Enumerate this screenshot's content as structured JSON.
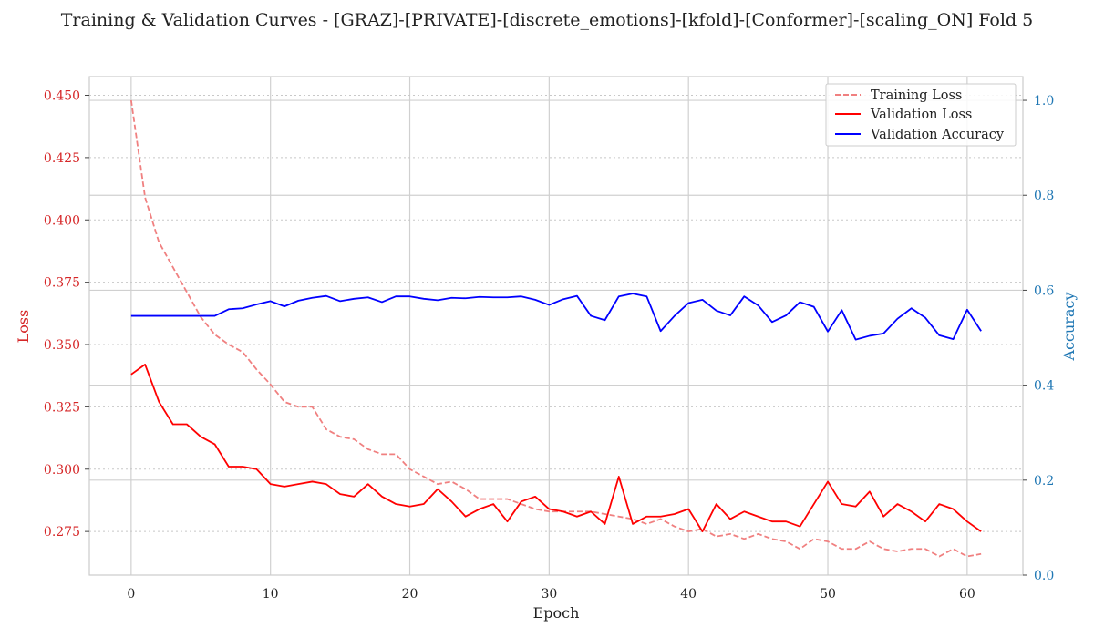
{
  "chart_data": {
    "type": "line",
    "title": "Training & Validation Curves - [GRAZ]-[PRIVATE]-[discrete_emotions]-[kfold]-[Conformer]-[scaling_ON] Fold 5",
    "xlabel": "Epoch",
    "ylabel_left": "Loss",
    "ylabel_right": "Accuracy",
    "xlim": [
      -3,
      64
    ],
    "ylim_left": [
      0.2575,
      0.4575
    ],
    "ylim_right": [
      0.0,
      1.05
    ],
    "x_ticks": [
      0,
      10,
      20,
      30,
      40,
      50,
      60
    ],
    "y_ticks_left": [
      0.275,
      0.3,
      0.325,
      0.35,
      0.375,
      0.4,
      0.425,
      0.45
    ],
    "y_ticks_right": [
      0.0,
      0.2,
      0.4,
      0.6,
      0.8,
      1.0
    ],
    "grid": true,
    "legend_position": "top-right",
    "colors": {
      "training_loss": "#f08080",
      "validation_loss": "#ff0000",
      "validation_accuracy": "#0000ff",
      "left_axis": "#d62728",
      "right_axis": "#1f77b4"
    },
    "x": [
      0,
      1,
      2,
      3,
      4,
      5,
      6,
      7,
      8,
      9,
      10,
      11,
      12,
      13,
      14,
      15,
      16,
      17,
      18,
      19,
      20,
      21,
      22,
      23,
      24,
      25,
      26,
      27,
      28,
      29,
      30,
      31,
      32,
      33,
      34,
      35,
      36,
      37,
      38,
      39,
      40,
      41,
      42,
      43,
      44,
      45,
      46,
      47,
      48,
      49,
      50,
      51,
      52,
      53,
      54,
      55,
      56,
      57,
      58,
      59,
      60,
      61
    ],
    "series": [
      {
        "name": "Training Loss",
        "axis": "left",
        "style": "dashed",
        "values": [
          0.448,
          0.409,
          0.391,
          0.381,
          0.371,
          0.361,
          0.354,
          0.35,
          0.347,
          0.34,
          0.334,
          0.327,
          0.325,
          0.325,
          0.316,
          0.313,
          0.312,
          0.308,
          0.306,
          0.306,
          0.3,
          0.297,
          0.294,
          0.295,
          0.292,
          0.288,
          0.288,
          0.288,
          0.286,
          0.284,
          0.283,
          0.283,
          0.283,
          0.283,
          0.282,
          0.281,
          0.28,
          0.278,
          0.28,
          0.277,
          0.275,
          0.276,
          0.273,
          0.274,
          0.272,
          0.274,
          0.272,
          0.271,
          0.268,
          0.272,
          0.271,
          0.268,
          0.268,
          0.271,
          0.268,
          0.267,
          0.268,
          0.268,
          0.265,
          0.268,
          0.265,
          0.266
        ]
      },
      {
        "name": "Validation Loss",
        "axis": "left",
        "style": "solid",
        "values": [
          0.338,
          0.342,
          0.327,
          0.318,
          0.318,
          0.313,
          0.31,
          0.301,
          0.301,
          0.3,
          0.294,
          0.293,
          0.294,
          0.295,
          0.294,
          0.29,
          0.289,
          0.294,
          0.289,
          0.286,
          0.285,
          0.286,
          0.292,
          0.287,
          0.281,
          0.284,
          0.286,
          0.279,
          0.287,
          0.289,
          0.284,
          0.283,
          0.281,
          0.283,
          0.278,
          0.297,
          0.278,
          0.281,
          0.281,
          0.282,
          0.284,
          0.275,
          0.286,
          0.28,
          0.283,
          0.281,
          0.279,
          0.279,
          0.277,
          0.286,
          0.295,
          0.286,
          0.285,
          0.291,
          0.281,
          0.286,
          0.283,
          0.279,
          0.286,
          0.284,
          0.279,
          0.275
        ]
      },
      {
        "name": "Validation Accuracy",
        "axis": "right",
        "style": "solid",
        "values": [
          0.546,
          0.546,
          0.546,
          0.546,
          0.546,
          0.546,
          0.546,
          0.56,
          0.562,
          0.57,
          0.577,
          0.566,
          0.578,
          0.584,
          0.588,
          0.577,
          0.582,
          0.585,
          0.575,
          0.587,
          0.587,
          0.582,
          0.579,
          0.584,
          0.583,
          0.586,
          0.585,
          0.585,
          0.587,
          0.58,
          0.569,
          0.581,
          0.588,
          0.546,
          0.537,
          0.587,
          0.593,
          0.587,
          0.514,
          0.546,
          0.573,
          0.58,
          0.557,
          0.547,
          0.587,
          0.568,
          0.533,
          0.547,
          0.575,
          0.565,
          0.513,
          0.558,
          0.496,
          0.504,
          0.509,
          0.54,
          0.562,
          0.542,
          0.505,
          0.497,
          0.559,
          0.514
        ]
      }
    ]
  }
}
